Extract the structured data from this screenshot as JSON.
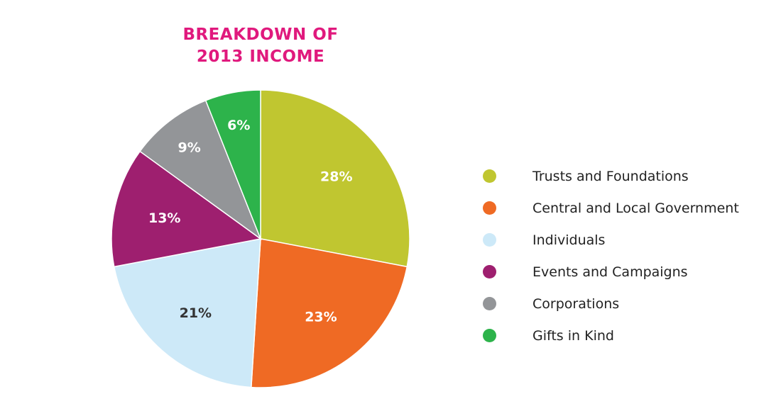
{
  "chart_data": {
    "type": "pie",
    "title": [
      "BREAKDOWN OF",
      "2013 INCOME"
    ],
    "slices": [
      {
        "label": "Trusts and Foundations",
        "value": 28,
        "display": "28%",
        "color": "#c0c630",
        "text_color": "#ffffff"
      },
      {
        "label": "Central and Local Government",
        "value": 23,
        "display": "23%",
        "color": "#ef6a24",
        "text_color": "#ffffff"
      },
      {
        "label": "Individuals",
        "value": 21,
        "display": "21%",
        "color": "#cde9f8",
        "text_color": "#333333"
      },
      {
        "label": "Events and Campaigns",
        "value": 13,
        "display": "13%",
        "color": "#9e1f6f",
        "text_color": "#ffffff"
      },
      {
        "label": "Corporations",
        "value": 9,
        "display": "9%",
        "color": "#939598",
        "text_color": "#ffffff"
      },
      {
        "label": "Gifts in Kind",
        "value": 6,
        "display": "6%",
        "color": "#2db34b",
        "text_color": "#ffffff"
      }
    ],
    "start": "top",
    "direction": "clockwise",
    "legend_position": "right"
  }
}
